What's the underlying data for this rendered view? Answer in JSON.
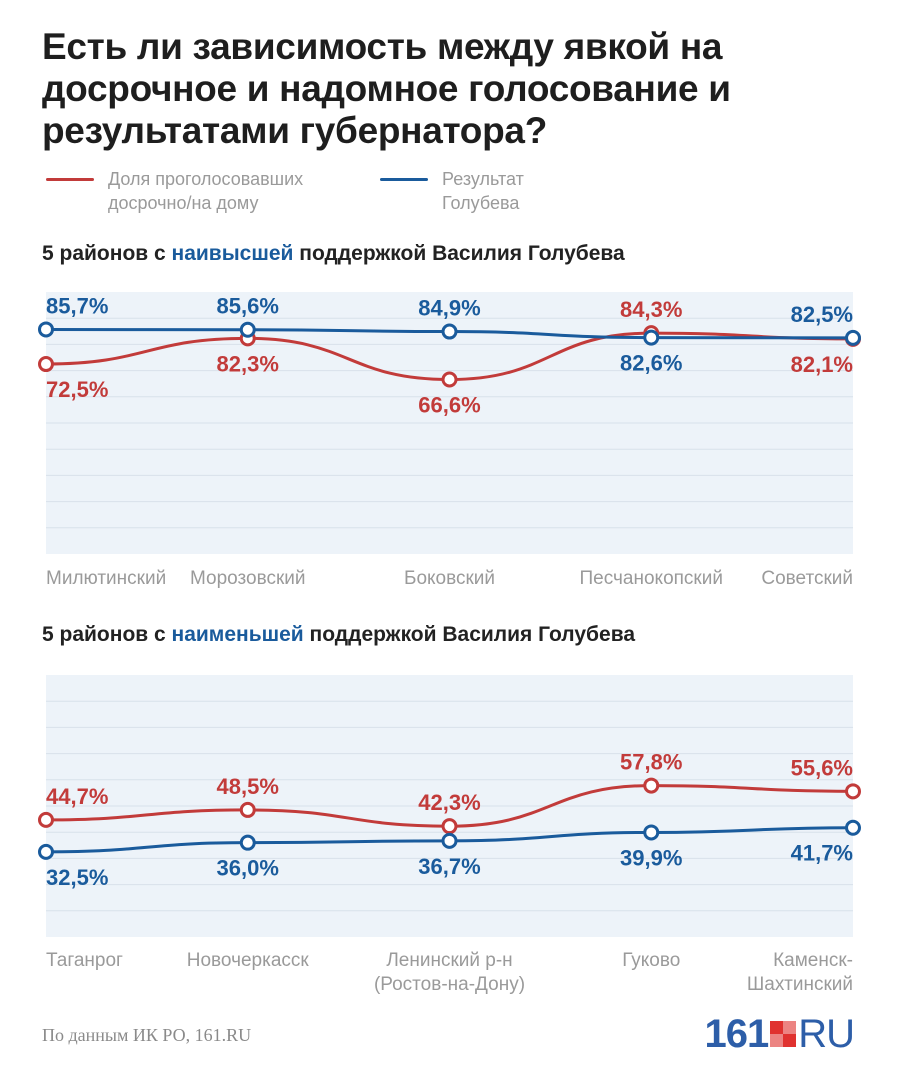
{
  "title": "Есть ли зависимость между явкой на досрочное и надомное голосование и результатами губернатора?",
  "legend": {
    "early_label": "Доля проголосовавших досрочно/на дому",
    "result_label": "Результат Голубева"
  },
  "colors": {
    "early": "#c23b3a",
    "result": "#1a5b9c",
    "plot_bg": "#edf3f9",
    "grid": "#d8e1ea"
  },
  "section1": {
    "pre": "5 районов с ",
    "highlight": "наивысшей",
    "post": " поддержкой Василия Голубева"
  },
  "section2": {
    "pre": "5 районов с ",
    "highlight": "наименьшей",
    "post": " поддержкой Василия Голубева"
  },
  "source": "По данным ИК РО, 161.RU",
  "logo": {
    "num": "161",
    "ru": "RU"
  },
  "chart_data": [
    {
      "type": "line",
      "title": "5 районов с наивысшей поддержкой Василия Голубева",
      "categories": [
        "Милютинский",
        "Морозовский",
        "Боковский",
        "Песчанокопский",
        "Советский"
      ],
      "series": [
        {
          "name": "Доля проголосовавших досрочно/на дому",
          "values": [
            72.5,
            82.3,
            66.6,
            84.3,
            82.1
          ],
          "labels": [
            "72,5%",
            "82,3%",
            "66,6%",
            "84,3%",
            "82,1%"
          ],
          "label_pos": [
            "below",
            "below",
            "below",
            "above",
            "below"
          ]
        },
        {
          "name": "Результат Голубева",
          "values": [
            85.7,
            85.6,
            84.9,
            82.6,
            82.5
          ],
          "labels": [
            "85,7%",
            "85,6%",
            "84,9%",
            "82,6%",
            "82,5%"
          ],
          "label_pos": [
            "above",
            "above",
            "above",
            "below",
            "above"
          ]
        }
      ],
      "ylim": [
        0,
        100
      ]
    },
    {
      "type": "line",
      "title": "5 районов с наименьшей поддержкой Василия Голубева",
      "categories": [
        "Таганрог",
        "Новочеркасск",
        "Ленинский р-н (Ростов-на-Дону)",
        "Гуково",
        "Каменск-Шахтинский"
      ],
      "series": [
        {
          "name": "Доля проголосовавших досрочно/на дому",
          "values": [
            44.7,
            48.5,
            42.3,
            57.8,
            55.6
          ],
          "labels": [
            "44,7%",
            "48,5%",
            "42,3%",
            "57,8%",
            "55,6%"
          ],
          "label_pos": [
            "above",
            "above",
            "above",
            "above",
            "above"
          ]
        },
        {
          "name": "Результат Голубева",
          "values": [
            32.5,
            36.0,
            36.7,
            39.9,
            41.7
          ],
          "labels": [
            "32,5%",
            "36,0%",
            "36,7%",
            "39,9%",
            "41,7%"
          ],
          "label_pos": [
            "below",
            "below",
            "below",
            "below",
            "below"
          ]
        }
      ],
      "ylim": [
        0,
        100
      ]
    }
  ]
}
